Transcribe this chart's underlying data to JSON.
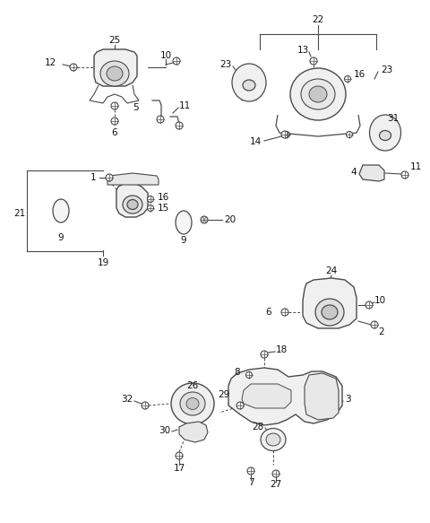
{
  "background_color": "#ffffff",
  "fig_width": 4.8,
  "fig_height": 5.83,
  "dpi": 100,
  "label_fs": 7.5,
  "line_color": "#4a4a4a",
  "label_color": "#111111"
}
